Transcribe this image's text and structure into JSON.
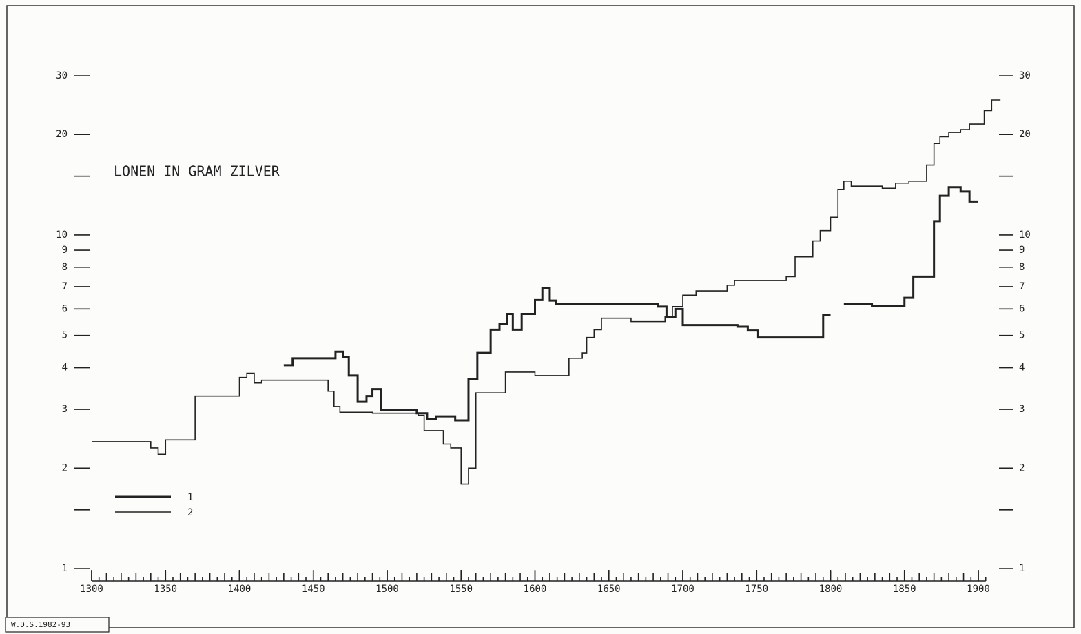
{
  "chart_data": {
    "type": "step",
    "title": "LONEN IN GRAM ZILVER",
    "credit": "W.D.S.1982-93",
    "log_y": true,
    "xlim": [
      1300,
      1900
    ],
    "xticks": [
      1300,
      1350,
      1400,
      1450,
      1500,
      1550,
      1600,
      1650,
      1700,
      1750,
      1800,
      1850,
      1900
    ],
    "minor_xtick_step": 5,
    "ylim": [
      1,
      30
    ],
    "yticks": [
      1,
      2,
      3,
      4,
      5,
      6,
      7,
      8,
      9,
      10,
      20,
      30
    ],
    "minor_yticks": [
      1.5,
      15
    ],
    "right_axis": true,
    "legend": "lower left",
    "series": [
      {
        "name": "1",
        "color": "#222",
        "width": 3,
        "x": [
          1430,
          1436,
          1465,
          1470,
          1474,
          1480,
          1486,
          1490,
          1496,
          1520,
          1527,
          1533,
          1546,
          1555,
          1561,
          1570,
          1576,
          1581,
          1585,
          1591,
          1600,
          1605,
          1610,
          1614,
          1683,
          1689,
          1695,
          1700,
          1737,
          1744,
          1751,
          1795,
          1800,
          1806,
          1809,
          1828,
          1850,
          1856,
          1870,
          1874,
          1880,
          1888,
          1894,
          1900
        ],
        "values": [
          4.07,
          4.27,
          4.47,
          4.3,
          3.79,
          3.16,
          3.29,
          3.45,
          2.99,
          2.92,
          2.81,
          2.86,
          2.78,
          3.7,
          4.43,
          5.2,
          5.41,
          5.8,
          5.2,
          5.8,
          6.38,
          6.94,
          6.36,
          6.2,
          6.1,
          5.68,
          6.0,
          5.37,
          5.31,
          5.17,
          4.93,
          5.76,
          5.76,
          null,
          6.2,
          6.12,
          6.48,
          7.5,
          11.0,
          13.1,
          13.9,
          13.5,
          12.6,
          12.6
        ]
      },
      {
        "name": "2",
        "color": "#222",
        "width": 1.6,
        "x": [
          1300,
          1340,
          1345,
          1350,
          1370,
          1400,
          1405,
          1410,
          1415,
          1460,
          1464,
          1468,
          1490,
          1521,
          1525,
          1538,
          1543,
          1550,
          1555,
          1560,
          1580,
          1600,
          1623,
          1632,
          1635,
          1640,
          1645,
          1665,
          1688,
          1693,
          1700,
          1709,
          1730,
          1735,
          1770,
          1776,
          1788,
          1793,
          1800,
          1805,
          1809,
          1814,
          1835,
          1844,
          1853,
          1865,
          1870,
          1874,
          1880,
          1888,
          1894,
          1904,
          1909,
          1915
        ],
        "values": [
          2.4,
          2.3,
          2.2,
          2.43,
          3.29,
          3.74,
          3.85,
          3.6,
          3.67,
          3.4,
          3.06,
          2.94,
          2.92,
          2.88,
          2.59,
          2.36,
          2.3,
          1.79,
          2.0,
          3.36,
          3.88,
          3.79,
          4.27,
          4.43,
          4.93,
          5.2,
          5.63,
          5.5,
          5.68,
          6.1,
          6.6,
          6.8,
          7.07,
          7.3,
          7.5,
          8.6,
          9.6,
          10.3,
          11.3,
          13.7,
          14.5,
          14.0,
          13.8,
          14.3,
          14.5,
          16.2,
          18.8,
          19.7,
          20.3,
          20.7,
          21.5,
          23.6,
          25.4,
          25.4
        ]
      }
    ]
  }
}
